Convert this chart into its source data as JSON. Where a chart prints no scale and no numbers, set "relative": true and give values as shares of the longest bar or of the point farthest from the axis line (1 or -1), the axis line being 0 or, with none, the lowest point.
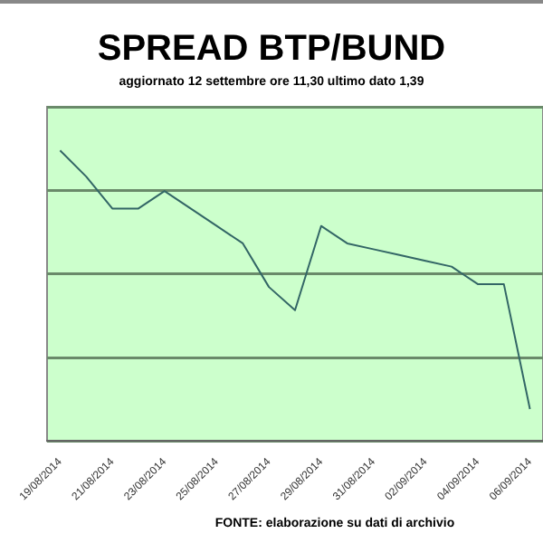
{
  "chart_data": {
    "type": "line",
    "title": "SPREAD BTP/BUND",
    "subtitle": "aggiornato 12 settembre ore 11,30 ultimo dato 1,39",
    "categories": [
      "19/08/2014",
      null,
      "21/08/2014",
      null,
      "23/08/2014",
      null,
      "25/08/2014",
      null,
      "27/08/2014",
      null,
      "29/08/2014",
      null,
      "31/08/2014",
      null,
      "02/09/2014",
      null,
      "04/09/2014",
      null,
      "06/09/2014"
    ],
    "series": [
      {
        "color": "#336666",
        "values": [
          1,
          0.91,
          0.8,
          0.8,
          0.86,
          0.8,
          0.74,
          0.68,
          0.53,
          0.45,
          0.74,
          0.68,
          0.66,
          0.64,
          0.62,
          0.6,
          0.54,
          0.54,
          0.11
        ]
      }
    ],
    "relative": true,
    "grid": "y",
    "marker": "none",
    "line_style": "solid",
    "annotations": [
      "FONTE: elaborazione su dati di archivio"
    ]
  }
}
